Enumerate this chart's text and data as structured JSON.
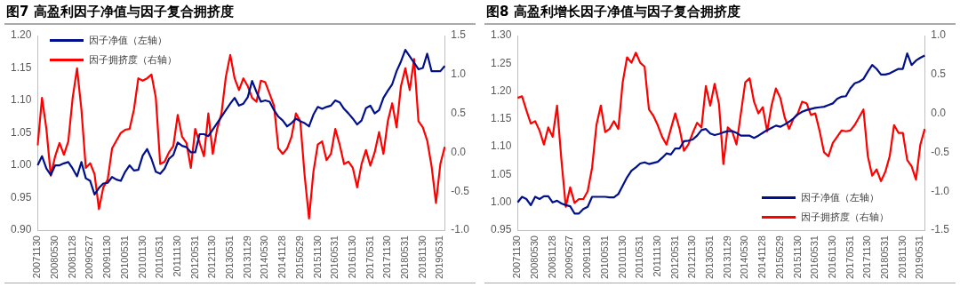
{
  "chart_data": [
    {
      "type": "line",
      "title": "图7  高盈利因子净值与因子复合拥挤度",
      "categories": [
        "20071130",
        null,
        null,
        null,
        "20080530",
        null,
        null,
        null,
        "20081128",
        null,
        null,
        null,
        "20090527",
        null,
        null,
        null,
        "20091130",
        null,
        null,
        null,
        "20100531",
        null,
        null,
        null,
        "20101130",
        null,
        null,
        null,
        "20110531",
        null,
        null,
        null,
        "20111130",
        null,
        null,
        null,
        "20120531",
        null,
        null,
        null,
        "20121130",
        null,
        null,
        null,
        "20130531",
        null,
        null,
        null,
        "20131129",
        null,
        null,
        null,
        "20140530",
        null,
        null,
        null,
        "20141128",
        null,
        null,
        null,
        "20150529",
        null,
        null,
        null,
        "20151130",
        null,
        null,
        null,
        "20160531",
        null,
        null,
        null,
        "20161130",
        null,
        null,
        null,
        "20170531",
        null,
        null,
        null,
        "20171130",
        null,
        null,
        null,
        "20180531",
        null,
        null,
        null,
        "20181130",
        null,
        null,
        null,
        "20190531",
        null
      ],
      "series": [
        {
          "name": "因子净值（左轴）",
          "color": "#000f8c",
          "values": [
            1.0,
            1.014,
            0.995,
            0.985,
            1.0,
            1.0,
            1.003,
            1.005,
            0.995,
            0.983,
            1.005,
            0.98,
            0.976,
            0.955,
            0.965,
            0.972,
            0.973,
            0.982,
            0.978,
            0.976,
            0.99,
            1.0,
            0.992,
            0.993,
            1.015,
            1.025,
            1.01,
            0.99,
            0.987,
            0.995,
            1.01,
            1.016,
            1.035,
            1.03,
            1.028,
            1.02,
            1.02,
            1.048,
            1.048,
            1.045,
            1.055,
            1.065,
            1.075,
            1.085,
            1.095,
            1.104,
            1.092,
            1.095,
            1.105,
            1.13,
            1.113,
            1.098,
            1.1,
            1.098,
            1.085,
            1.075,
            1.069,
            1.06,
            1.065,
            1.072,
            1.068,
            1.065,
            1.06,
            1.078,
            1.09,
            1.087,
            1.09,
            1.092,
            1.1,
            1.097,
            1.087,
            1.08,
            1.072,
            1.063,
            1.069,
            1.088,
            1.092,
            1.08,
            1.085,
            1.104,
            1.115,
            1.125,
            1.145,
            1.16,
            1.178,
            1.168,
            1.158,
            1.148,
            1.15,
            1.172,
            1.145,
            1.145,
            1.145,
            1.153
          ]
        },
        {
          "name": "因子拥挤度（右轴）",
          "color": "#ff0000",
          "axis": "y2",
          "values": [
            0.09,
            0.7,
            0.3,
            -0.3,
            -0.05,
            0.12,
            -0.03,
            0.14,
            0.7,
            1.08,
            0.55,
            -0.2,
            -0.14,
            -0.28,
            -0.73,
            -0.45,
            -0.35,
            0.05,
            0.15,
            0.25,
            0.29,
            0.3,
            0.55,
            0.95,
            0.92,
            0.95,
            1.0,
            0.7,
            -0.15,
            -0.12,
            0.0,
            0.08,
            0.48,
            0.2,
            0.12,
            -0.2,
            0.3,
            0.12,
            -0.05,
            0.5,
            -0.02,
            0.3,
            0.5,
            0.97,
            1.25,
            0.95,
            0.8,
            0.95,
            0.85,
            0.7,
            0.65,
            0.92,
            0.9,
            0.75,
            0.6,
            0.05,
            -0.02,
            0.05,
            0.2,
            0.5,
            0.4,
            -0.3,
            -0.85,
            -0.25,
            0.1,
            0.14,
            -0.1,
            -0.02,
            0.3,
            0.1,
            -0.15,
            -0.12,
            -0.2,
            -0.45,
            -0.15,
            0.03,
            -0.17,
            0.0,
            0.26,
            -0.02,
            0.4,
            0.63,
            0.32,
            0.85,
            1.08,
            0.8,
            1.2,
            0.4,
            0.32,
            0.15,
            -0.18,
            -0.65,
            -0.15,
            0.07
          ]
        }
      ],
      "ylim": [
        0.9,
        1.2
      ],
      "yticks": [
        {
          "value": 0.9,
          "label": "0.90"
        },
        {
          "value": 0.95,
          "label": "0.95"
        },
        {
          "value": 1.0,
          "label": "1.00"
        },
        {
          "value": 1.05,
          "label": "1.05"
        },
        {
          "value": 1.1,
          "label": "1.10"
        },
        {
          "value": 1.15,
          "label": "1.15"
        },
        {
          "value": 1.2,
          "label": "1.20"
        }
      ],
      "y2lim": [
        -1.0,
        1.5
      ],
      "y2ticks": [
        {
          "value": -1.0,
          "label": "-1.0"
        },
        {
          "value": -0.5,
          "label": "-0.5"
        },
        {
          "value": 0,
          "label": "0.0"
        },
        {
          "value": 0.5,
          "label": "0.5"
        },
        {
          "value": 1.0,
          "label": "1.0"
        },
        {
          "value": 1.5,
          "label": "1.5"
        }
      ],
      "grid": false,
      "legend": "top left",
      "marker": "none",
      "line_style": "solid"
    },
    {
      "type": "line",
      "title": "图8  高盈利增长因子净值与因子复合拥挤度",
      "categories": [
        "20071130",
        null,
        null,
        null,
        "20080530",
        null,
        null,
        null,
        "20081128",
        null,
        null,
        null,
        "20090527",
        null,
        null,
        null,
        "20091130",
        null,
        null,
        null,
        "20100531",
        null,
        null,
        null,
        "20101130",
        null,
        null,
        null,
        "20110531",
        null,
        null,
        null,
        "20111130",
        null,
        null,
        null,
        "20120531",
        null,
        null,
        null,
        "20121130",
        null,
        null,
        null,
        "20130531",
        null,
        null,
        null,
        "20131129",
        null,
        null,
        null,
        "20140530",
        null,
        null,
        null,
        "20141128",
        null,
        null,
        null,
        "20150529",
        null,
        null,
        null,
        "20151130",
        null,
        null,
        null,
        "20160531",
        null,
        null,
        null,
        "20161130",
        null,
        null,
        null,
        "20170531",
        null,
        null,
        null,
        "20171130",
        null,
        null,
        null,
        "20180531",
        null,
        null,
        null,
        "20181130",
        null,
        null,
        null,
        "20190531",
        null
      ],
      "series": [
        {
          "name": "因子净值（左轴）",
          "color": "#000f8c",
          "values": [
            1.0,
            1.01,
            1.006,
            0.995,
            1.01,
            1.006,
            1.011,
            1.011,
            1.0,
            1.003,
            0.998,
            0.995,
            0.993,
            0.98,
            0.98,
            0.988,
            0.992,
            1.01,
            1.01,
            1.01,
            1.01,
            1.009,
            1.009,
            1.015,
            1.03,
            1.045,
            1.057,
            1.063,
            1.07,
            1.072,
            1.069,
            1.071,
            1.073,
            1.08,
            1.088,
            1.086,
            1.097,
            1.097,
            1.11,
            1.111,
            1.113,
            1.12,
            1.13,
            1.132,
            1.124,
            1.121,
            1.123,
            1.126,
            1.128,
            1.128,
            1.125,
            1.12,
            1.12,
            1.12,
            1.116,
            1.12,
            1.125,
            1.13,
            1.134,
            1.138,
            1.136,
            1.14,
            1.145,
            1.151,
            1.158,
            1.163,
            1.166,
            1.168,
            1.17,
            1.171,
            1.172,
            1.175,
            1.178,
            1.186,
            1.19,
            1.191,
            1.205,
            1.214,
            1.217,
            1.222,
            1.235,
            1.247,
            1.24,
            1.23,
            1.23,
            1.232,
            1.236,
            1.24,
            1.24,
            1.268,
            1.247,
            1.255,
            1.26,
            1.264
          ]
        },
        {
          "name": "因子拥挤度（右轴）",
          "color": "#ff0000",
          "axis": "y2",
          "values": [
            0.2,
            0.22,
            0.04,
            -0.13,
            -0.1,
            -0.22,
            -0.4,
            -0.18,
            -0.3,
            0.1,
            -0.6,
            -1.2,
            -0.95,
            -1.15,
            -1.1,
            -1.1,
            -1.0,
            -0.7,
            -0.15,
            0.1,
            -0.24,
            -0.2,
            -0.1,
            -0.2,
            0.4,
            0.72,
            0.65,
            0.78,
            0.65,
            0.6,
            0.05,
            -0.03,
            -0.15,
            -0.3,
            -0.4,
            -0.2,
            0.0,
            -0.2,
            -0.48,
            -0.4,
            -0.25,
            -0.12,
            -0.18,
            0.35,
            0.1,
            0.38,
            0.12,
            -0.65,
            -0.18,
            -0.23,
            -0.4,
            0.0,
            0.4,
            0.45,
            0.15,
            0.0,
            0.08,
            -0.23,
            0.1,
            0.32,
            0.2,
            -0.05,
            -0.2,
            -0.07,
            0.0,
            0.15,
            0.13,
            -0.02,
            0.0,
            -0.23,
            -0.5,
            -0.55,
            -0.38,
            -0.3,
            -0.22,
            -0.23,
            -0.22,
            -0.15,
            -0.05,
            0.05,
            -0.55,
            -0.8,
            -0.72,
            -0.87,
            -0.75,
            -0.55,
            -0.15,
            -0.25,
            -0.25,
            -0.6,
            -0.68,
            -0.85,
            -0.4,
            -0.2
          ]
        }
      ],
      "ylim": [
        0.95,
        1.3
      ],
      "yticks": [
        {
          "value": 0.95,
          "label": "0.95"
        },
        {
          "value": 1.0,
          "label": "1.00"
        },
        {
          "value": 1.05,
          "label": "1.05"
        },
        {
          "value": 1.1,
          "label": "1.10"
        },
        {
          "value": 1.15,
          "label": "1.15"
        },
        {
          "value": 1.2,
          "label": "1.20"
        },
        {
          "value": 1.25,
          "label": "1.25"
        },
        {
          "value": 1.3,
          "label": "1.30"
        }
      ],
      "y2lim": [
        -1.5,
        1.0
      ],
      "y2ticks": [
        {
          "value": -1.5,
          "label": "-1.5"
        },
        {
          "value": -1.0,
          "label": "-1.0"
        },
        {
          "value": -0.5,
          "label": "-0.5"
        },
        {
          "value": 0,
          "label": "0.0"
        },
        {
          "value": 0.5,
          "label": "0.5"
        },
        {
          "value": 1.0,
          "label": "1.0"
        }
      ],
      "grid": false,
      "legend": "bottom right",
      "marker": "none",
      "line_style": "solid"
    }
  ]
}
